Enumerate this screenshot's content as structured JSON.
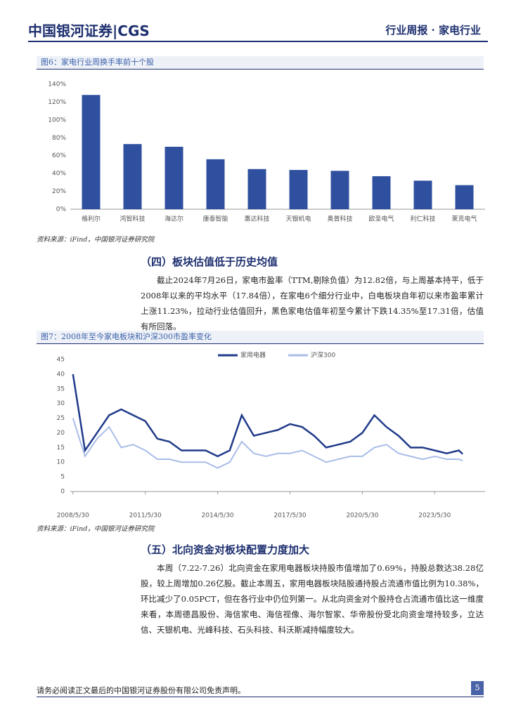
{
  "header": {
    "brand": "中国银河证券|CGS",
    "report": "行业周报 · 家电行业"
  },
  "chart_data": [
    {
      "type": "bar",
      "title": "图6：家电行业周换手率前十个股",
      "categories": [
        "格利尔",
        "鸿智科技",
        "海达尔",
        "康泰智能",
        "惠达科技",
        "天银机电",
        "奥普科技",
        "欧圣电气",
        "利仁科技",
        "莱克电气"
      ],
      "values": [
        128,
        73,
        70,
        56,
        45,
        44,
        43,
        37,
        32,
        27
      ],
      "color": "#2f4f9f",
      "ylim": [
        0,
        140
      ],
      "yticks": [
        {
          "value": 0,
          "label": "0%"
        },
        {
          "value": 20,
          "label": "20%"
        },
        {
          "value": 40,
          "label": "40%"
        },
        {
          "value": 60,
          "label": "60%"
        },
        {
          "value": 80,
          "label": "80%"
        },
        {
          "value": 100,
          "label": "100%"
        },
        {
          "value": 120,
          "label": "120%"
        },
        {
          "value": 140,
          "label": "140%"
        }
      ],
      "source": "资料来源：iFind，中国银河证券研究院"
    },
    {
      "type": "line",
      "title": "图7：2008年至今家电板块和沪深300市盈率变化",
      "x": [
        2008.41,
        2008.91,
        2009.41,
        2009.91,
        2010.41,
        2010.91,
        2011.41,
        2011.91,
        2012.41,
        2012.91,
        2013.41,
        2013.91,
        2014.41,
        2014.91,
        2015.41,
        2015.91,
        2016.41,
        2016.91,
        2017.41,
        2017.91,
        2018.41,
        2018.91,
        2019.41,
        2019.91,
        2020.41,
        2020.91,
        2021.41,
        2021.91,
        2022.41,
        2022.91,
        2023.41,
        2023.91,
        2024.41,
        2024.57
      ],
      "series": [
        {
          "name": "家用电器",
          "color": "#1f3a8a",
          "values": [
            40,
            14,
            20,
            26,
            28,
            26,
            24,
            18,
            17,
            14,
            14,
            14,
            12,
            14,
            26,
            19,
            20,
            21,
            23,
            22,
            19,
            15,
            16,
            17,
            20,
            26,
            22,
            19,
            15,
            15,
            14,
            13,
            14,
            12.8
          ]
        },
        {
          "name": "沪深300",
          "color": "#a9bde8",
          "values": [
            25,
            12,
            18,
            22,
            15,
            16,
            14,
            11,
            11,
            10,
            10,
            10,
            8,
            10,
            17,
            13,
            12,
            13,
            13,
            14,
            12,
            10,
            11,
            12,
            12,
            15,
            16,
            13,
            12,
            11,
            12,
            11,
            11,
            10.5
          ]
        }
      ],
      "xlim": [
        2008.3,
        2025.5
      ],
      "xticks": [
        {
          "value": 2008.41,
          "label": "2008/5/30"
        },
        {
          "value": 2011.41,
          "label": "2011/5/30"
        },
        {
          "value": 2014.41,
          "label": "2014/5/30"
        },
        {
          "value": 2017.41,
          "label": "2017/5/30"
        },
        {
          "value": 2020.41,
          "label": "2020/5/30"
        },
        {
          "value": 2023.41,
          "label": "2023/5/30"
        }
      ],
      "ylim": [
        0,
        45
      ],
      "yticks": [
        0,
        5,
        10,
        15,
        20,
        25,
        30,
        35,
        40,
        45
      ],
      "source": "资料来源：iFind，中国银河证券研究院"
    }
  ],
  "section4": "（四）板块估值低于历史均值",
  "para1": "截止2024年7月26日，家电市盈率（TTM,剔除负值）为12.82倍，与上周基本持平，低于2008年以来的平均水平（17.84倍），在家电6个细分行业中，白电板块自年初以来市盈率累计上涨11.23%，拉动行业估值回升，黑色家电估值年初至今累计下跌14.35%至17.31倍，估值有所回落。",
  "section5": "（五）北向资金对板块配置力度加大",
  "para2": "本周（7.22-7.26）北向资金在家用电器板块持股市值增加了0.69%，持股总数达38.28亿股，较上周增加0.26亿股。截止本周五，家用电器板块陆股通持股占流通市值比例为10.38%，环比减少了0.05PCT，但在各行业中仍位列第一。从北向资金对个股持仓占流通市值比这一维度来看，本周德昌股份、海信家电、海信视像、海尔智家、华帝股份受北向资金增持较多，立达信、天银机电、光峰科技、石头科技、科沃斯减持幅度较大。",
  "footer": "请务必阅读正文最后的中国银河证券股份有限公司免责声明。",
  "page_number": "5"
}
